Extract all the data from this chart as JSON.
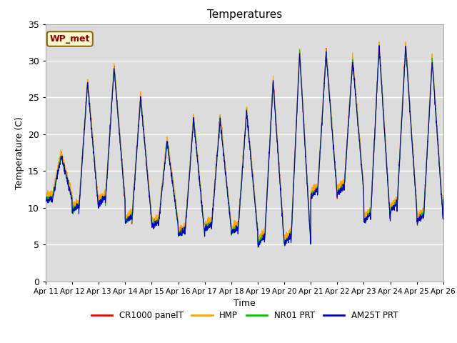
{
  "title": "Temperatures",
  "ylabel": "Temperature (C)",
  "xlabel": "Time",
  "ylim": [
    0,
    35
  ],
  "yticks": [
    0,
    5,
    10,
    15,
    20,
    25,
    30,
    35
  ],
  "x_labels": [
    "Apr 11",
    "Apr 12",
    "Apr 13",
    "Apr 14",
    "Apr 15",
    "Apr 16",
    "Apr 17",
    "Apr 18",
    "Apr 19",
    "Apr 20",
    "Apr 21",
    "Apr 22",
    "Apr 23",
    "Apr 24",
    "Apr 25",
    "Apr 26"
  ],
  "annotation_text": "WP_met",
  "annotation_color": "#8B0000",
  "annotation_bg": "#FFFACD",
  "annotation_border": "#8B6914",
  "colors": {
    "CR1000 panelT": "#FF0000",
    "HMP": "#FFA500",
    "NR01 PRT": "#00CC00",
    "AM25T PRT": "#0000CC"
  },
  "legend_labels": [
    "CR1000 panelT",
    "HMP",
    "NR01 PRT",
    "AM25T PRT"
  ],
  "legend_colors": [
    "#FF0000",
    "#FFA500",
    "#00CC00",
    "#0000CC"
  ],
  "plot_bg": "#DCDCDC",
  "grid_color": "#FFFFFF",
  "daily_mins": [
    11,
    9.5,
    10.5,
    8,
    7.5,
    6.2,
    7,
    6.5,
    5,
    5,
    11.5,
    12,
    8,
    9.5,
    8,
    11
  ],
  "daily_maxs": [
    17,
    27,
    29,
    25,
    19,
    22,
    22,
    23,
    27,
    31,
    31,
    30,
    32,
    32,
    30,
    30
  ]
}
